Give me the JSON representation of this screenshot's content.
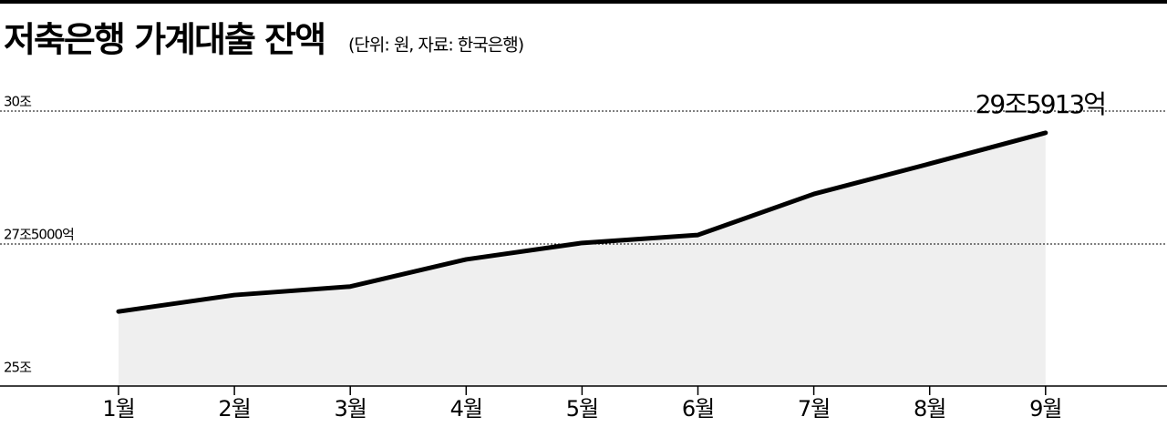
{
  "chart_data": {
    "type": "area-line",
    "title": "저축은행 가계대출 잔액",
    "subtitle": "(단위: 원, 자료: 한국은행)",
    "categories": [
      "1월",
      "2월",
      "3월",
      "4월",
      "5월",
      "6월",
      "7월",
      "8월",
      "9월"
    ],
    "values": [
      26.23,
      26.54,
      26.7,
      27.21,
      27.52,
      27.67,
      28.44,
      29.01,
      29.5913
    ],
    "value_labels": [
      null,
      null,
      null,
      null,
      null,
      null,
      null,
      null,
      "29조5913억"
    ],
    "color": "#000000",
    "area_color": "#efefef",
    "ylim": [
      25,
      30
    ],
    "yticks": [
      {
        "value": 25,
        "label": "25조"
      },
      {
        "value": 27.5,
        "label": "27조5000억"
      },
      {
        "value": 30,
        "label": "30조"
      }
    ],
    "grid": true
  }
}
